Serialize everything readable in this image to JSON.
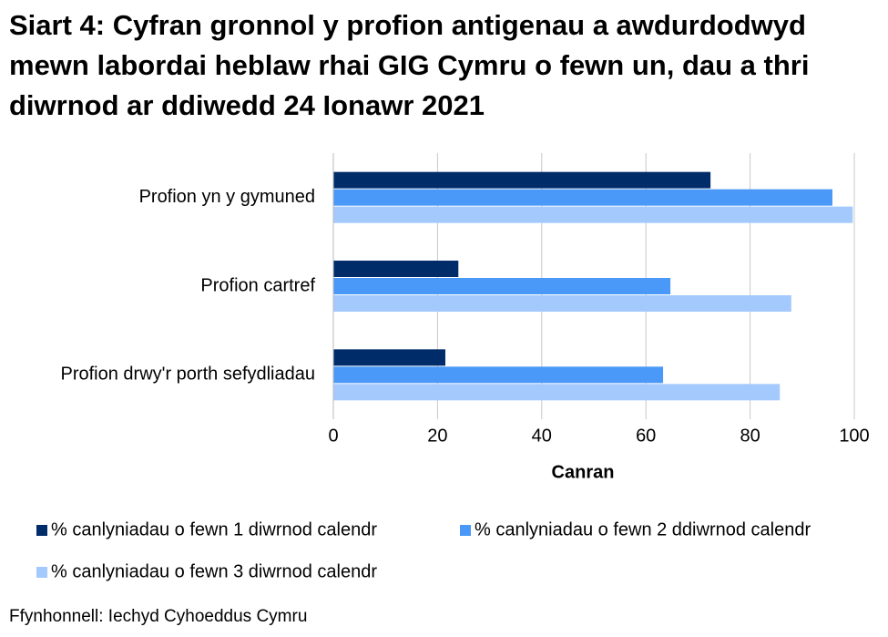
{
  "chart_data": {
    "type": "bar",
    "orientation": "horizontal",
    "title": "Siart 4: Cyfran gronnol y profion antigenau a awdurdodwyd mewn labordai heblaw rhai GIG Cymru o fewn un, dau a thri diwrnod ar ddiwedd 24 Ionawr 2021",
    "categories": [
      "Profion yn y gymuned",
      "Profion cartref",
      "Profion drwy'r porth sefydliadau"
    ],
    "series": [
      {
        "name": "% canlyniadau o fewn 1 diwrnod calendr",
        "color": "#002d6a",
        "values": [
          72.4,
          24,
          21.5
        ]
      },
      {
        "name": "% canlyniadau o fewn 2 ddiwrnod calendr",
        "color": "#4a98f7",
        "values": [
          95.8,
          64.7,
          63.3
        ]
      },
      {
        "name": "% canlyniadau o fewn 3 diwrnod calendr",
        "color": "#a3c9fd",
        "values": [
          99.7,
          87.9,
          85.7
        ]
      }
    ],
    "xlabel": "Canran",
    "xlim": [
      0,
      100
    ],
    "xticks": [
      0,
      20,
      40,
      60,
      80,
      100
    ],
    "grid": true,
    "legend": "bottom",
    "source": "Ffynhonnell: Iechyd Cyhoeddus Cymru"
  }
}
